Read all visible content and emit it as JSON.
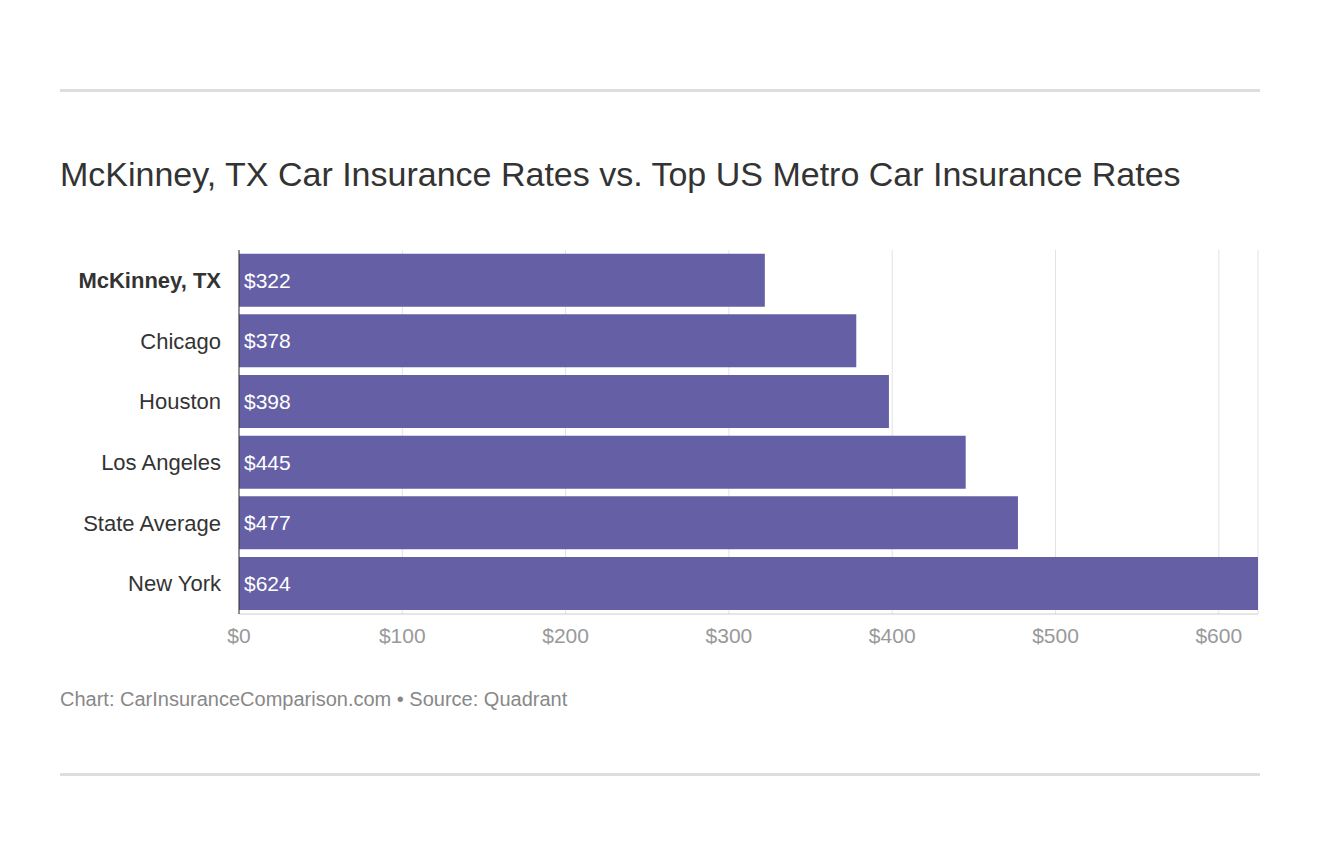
{
  "chart_data": {
    "type": "bar",
    "title": "McKinney, TX Car Insurance Rates vs. Top US Metro Car Insurance Rates",
    "source": "Chart: CarInsuranceComparison.com • Source: Quadrant",
    "orientation": "horizontal",
    "categories": [
      "McKinney, TX",
      "Chicago",
      "Houston",
      "Los Angeles",
      "State Average",
      "New York"
    ],
    "values": [
      322,
      378,
      398,
      445,
      477,
      624
    ],
    "value_labels": [
      "$322",
      "$378",
      "$398",
      "$445",
      "$477",
      "$624"
    ],
    "data_labels": true,
    "color": "#655fa6",
    "xlim": [
      0,
      624
    ],
    "xticks": [
      {
        "value": 0,
        "label": "$0"
      },
      {
        "value": 100,
        "label": "$100"
      },
      {
        "value": 200,
        "label": "$200"
      },
      {
        "value": 300,
        "label": "$300"
      },
      {
        "value": 400,
        "label": "$400"
      },
      {
        "value": 500,
        "label": "$500"
      },
      {
        "value": 600,
        "label": "$600"
      }
    ],
    "grid": true
  }
}
